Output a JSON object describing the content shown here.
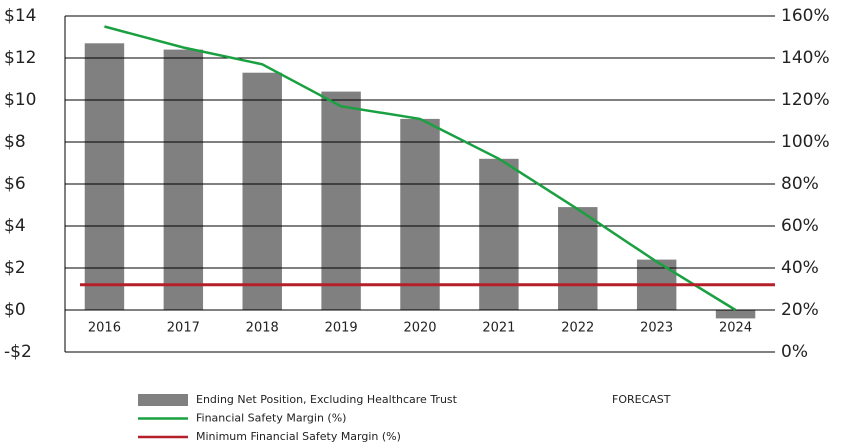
{
  "chart_data": {
    "type": "bar_line",
    "categories": [
      "2016",
      "2017",
      "2018",
      "2019",
      "2020",
      "2021",
      "2022",
      "2023",
      "2024"
    ],
    "series": [
      {
        "name": "Ending Net Position, Excluding Healthcare Trust",
        "color": "#808080",
        "kind": "bar",
        "values": [
          12.7,
          12.4,
          11.3,
          10.4,
          9.1,
          7.2,
          4.9,
          2.4,
          -0.4
        ]
      },
      {
        "name": "Financial Safety Margin (%)",
        "color": "#1aa040",
        "kind": "line",
        "axis": "y2",
        "values": [
          155,
          145,
          137,
          117,
          111,
          92,
          68,
          43,
          20
        ]
      },
      {
        "name": "Minimum Financial Safety Margin (%)",
        "color": "#b51f2a",
        "kind": "line",
        "axis": "y2",
        "values": [
          32,
          32,
          32,
          32,
          32,
          32,
          32,
          32,
          32
        ]
      }
    ],
    "ylim": [
      -2,
      14
    ],
    "yticks": [
      {
        "value": -2,
        "label": "-$2"
      },
      {
        "value": 0,
        "label": "$0"
      },
      {
        "value": 2,
        "label": "$2"
      },
      {
        "value": 4,
        "label": "$4"
      },
      {
        "value": 6,
        "label": "$6"
      },
      {
        "value": 8,
        "label": "$8"
      },
      {
        "value": 10,
        "label": "$10"
      },
      {
        "value": 12,
        "label": "$12"
      },
      {
        "value": 14,
        "label": "$14"
      }
    ],
    "y2lim": [
      0,
      160
    ],
    "y2ticks": [
      {
        "value": 0,
        "label": "0%"
      },
      {
        "value": 20,
        "label": "20%"
      },
      {
        "value": 40,
        "label": "40%"
      },
      {
        "value": 60,
        "label": "60%"
      },
      {
        "value": 80,
        "label": "80%"
      },
      {
        "value": 100,
        "label": "100%"
      },
      {
        "value": 120,
        "label": "120%"
      },
      {
        "value": 140,
        "label": "140%"
      },
      {
        "value": 160,
        "label": "160%"
      }
    ],
    "annotation": "FORECAST",
    "grid": true
  }
}
